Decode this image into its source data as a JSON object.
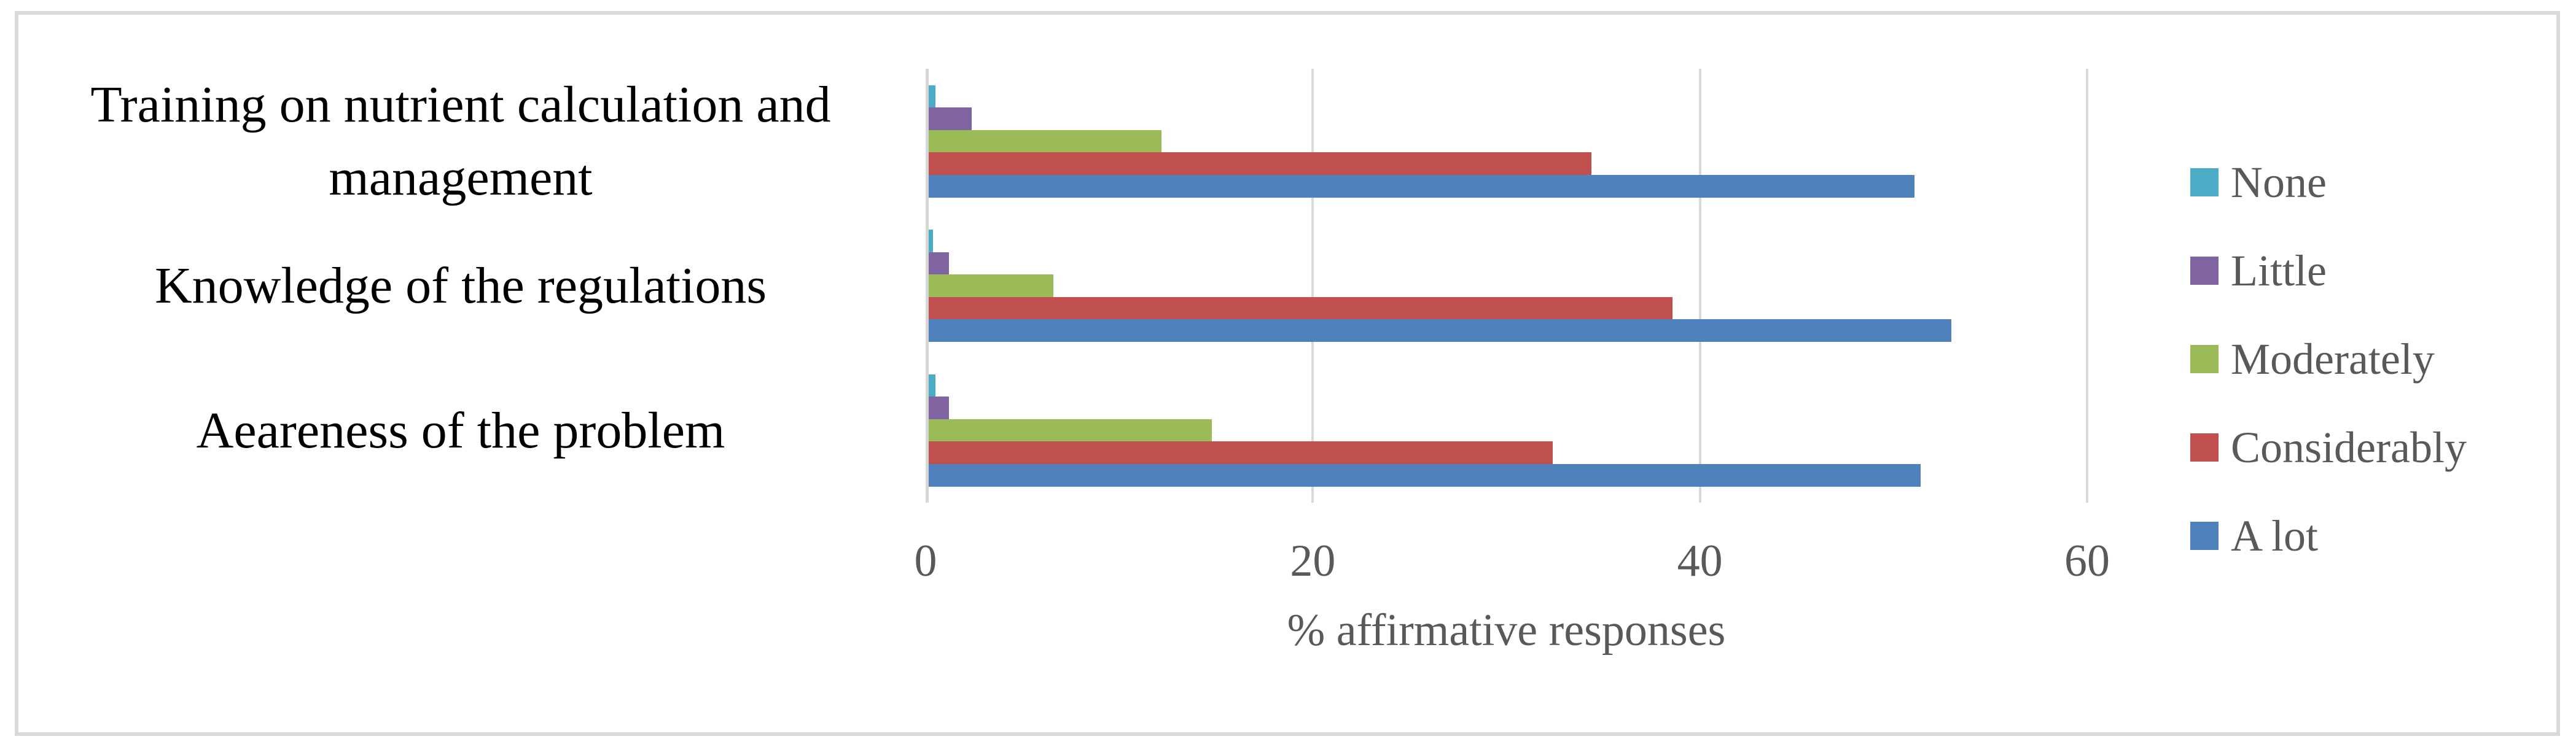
{
  "figure": {
    "background": "#ffffff",
    "border_color": "#d9d9d9",
    "grid_color": "#d9d9d9",
    "axis_text_color": "#595959",
    "category_text_color": "#000000"
  },
  "chart_data": {
    "type": "bar",
    "orientation": "horizontal",
    "title": "",
    "xlabel": "% affirmative responses",
    "ylabel": "",
    "xlim": [
      0,
      60
    ],
    "x_ticks": [
      0,
      20,
      40,
      60
    ],
    "grid": true,
    "legend_position": "right",
    "categories": [
      "Training on nutrient calculation and management",
      "Knowledge of the regulations",
      "Aeareness of the problem"
    ],
    "series": [
      {
        "name": "None",
        "color": "#4bacc6",
        "values": [
          0.4,
          0.3,
          0.4
        ]
      },
      {
        "name": "Little",
        "color": "#8064a2",
        "values": [
          2.3,
          1.1,
          1.1
        ]
      },
      {
        "name": "Moderately",
        "color": "#9bbb59",
        "values": [
          12.1,
          6.5,
          14.7
        ]
      },
      {
        "name": "Considerably",
        "color": "#c0504d",
        "values": [
          34.3,
          38.5,
          32.3
        ]
      },
      {
        "name": "A lot",
        "color": "#4f81bd",
        "values": [
          51.0,
          52.9,
          51.3
        ]
      }
    ]
  }
}
